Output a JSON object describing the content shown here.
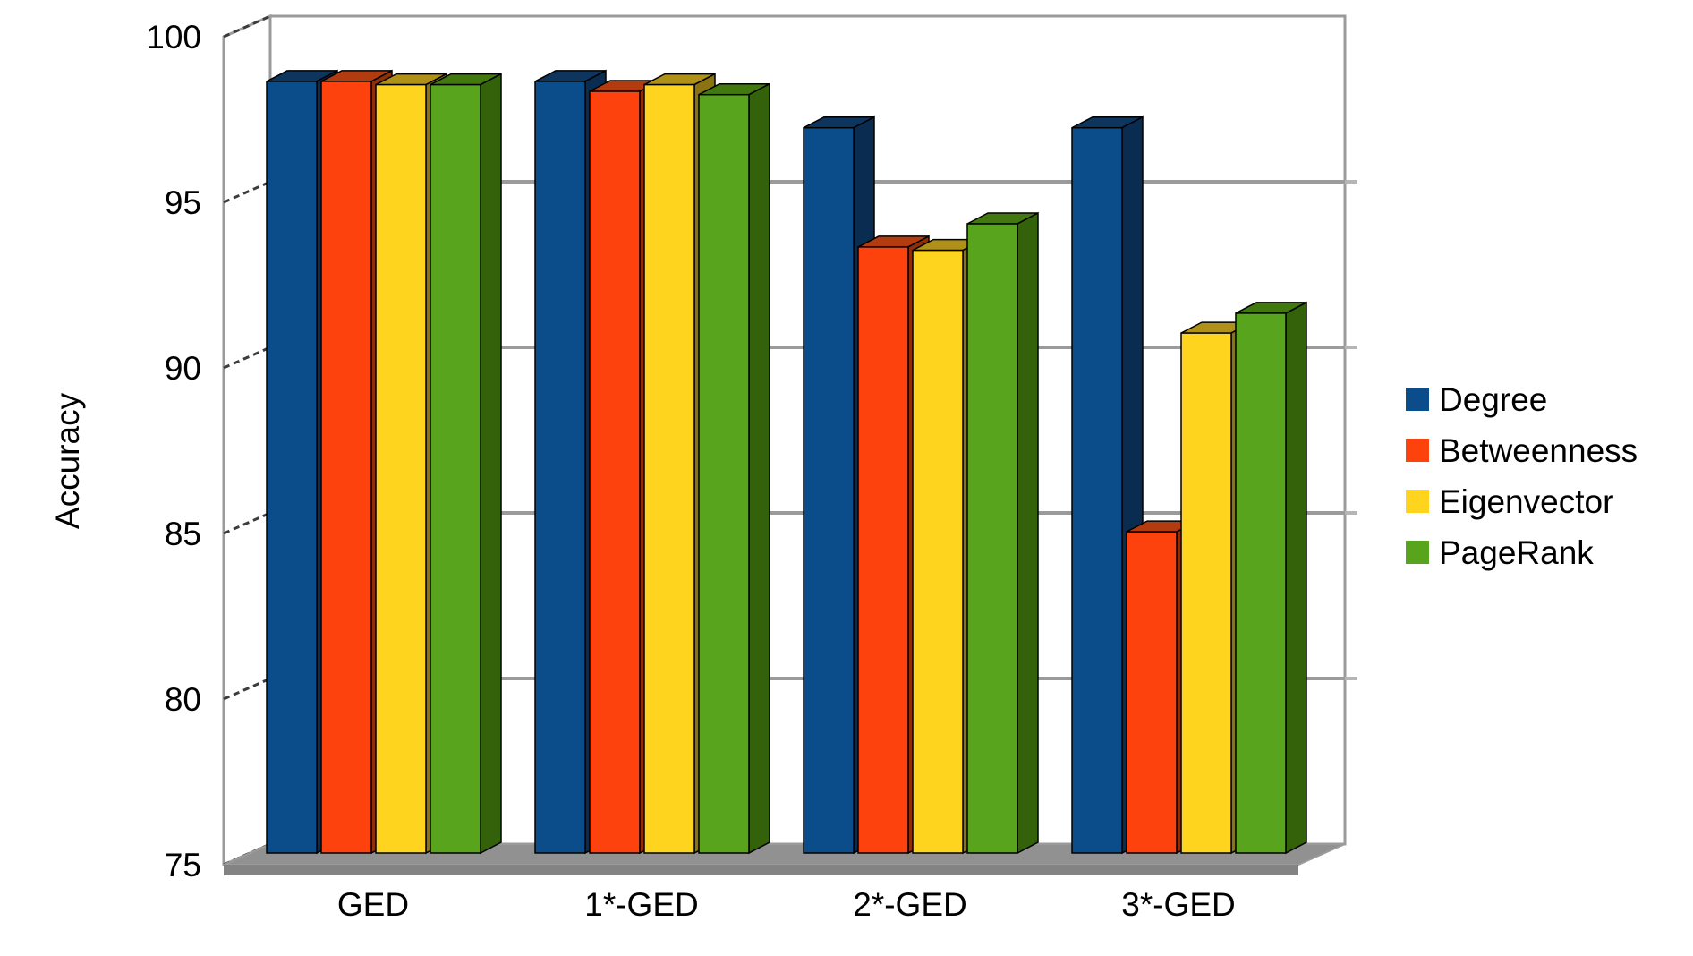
{
  "page": {
    "background": "#ffffff"
  },
  "chart_data": {
    "type": "bar",
    "projection": "3d",
    "title": "",
    "xlabel": "",
    "ylabel": "Accuracy",
    "categories": [
      "GED",
      "1*-GED",
      "2*-GED",
      "3*-GED"
    ],
    "series": [
      {
        "name": "Degree",
        "color": "#0a4d8a",
        "top_shade": "#0e355e",
        "side_shade": "#0a2c51",
        "values": [
          98.3,
          98.3,
          96.9,
          96.9
        ]
      },
      {
        "name": "Betweenness",
        "color": "#fd420e",
        "top_shade": "#b23c10",
        "side_shade": "#8f2f09",
        "values": [
          98.3,
          98.0,
          93.3,
          84.7
        ]
      },
      {
        "name": "Eigenvector",
        "color": "#ffd41e",
        "top_shade": "#af9118",
        "side_shade": "#8a7310",
        "values": [
          98.2,
          98.2,
          93.2,
          90.7
        ]
      },
      {
        "name": "PageRank",
        "color": "#58a41d",
        "top_shade": "#41790f",
        "side_shade": "#33620b",
        "values": [
          98.2,
          97.9,
          94.0,
          91.3
        ]
      }
    ],
    "ylim": [
      75,
      100
    ],
    "yticks": [
      100,
      95,
      90,
      85,
      80,
      75
    ],
    "grid": true,
    "legend_position": "right",
    "gridline_color": "#9b9b9b",
    "frame_color": "#9b9b9b",
    "tick_mark_color": "#3c3c3c",
    "floor_color": "#919191",
    "floor_front_color": "#838383",
    "wall_color": "#ffffff",
    "text_color": "#000000"
  }
}
